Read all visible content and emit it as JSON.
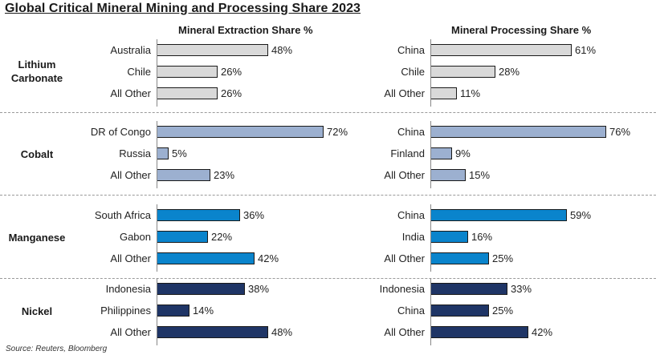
{
  "chart_data": {
    "type": "bar",
    "orientation": "horizontal",
    "title": "Global Critical Mineral Mining and Processing Share 2023",
    "source": "Source: Reuters, Bloomberg",
    "unit": "%",
    "xlim": [
      0,
      100
    ],
    "grid": false,
    "panels": [
      {
        "title": "Mineral Extraction Share %",
        "groups": [
          {
            "name": "Lithium Carbonate",
            "color": "#d9d9d9",
            "categories": [
              "Australia",
              "Chile",
              "All Other"
            ],
            "values": [
              48,
              26,
              26
            ],
            "labels": [
              "48%",
              "26%",
              "26%"
            ]
          },
          {
            "name": "Cobalt",
            "color": "#9cb0d0",
            "categories": [
              "DR of Congo",
              "Russia",
              "All Other"
            ],
            "values": [
              72,
              5,
              23
            ],
            "labels": [
              "72%",
              "5%",
              "23%"
            ]
          },
          {
            "name": "Manganese",
            "color": "#0a84cc",
            "categories": [
              "South Africa",
              "Gabon",
              "All Other"
            ],
            "values": [
              36,
              22,
              42
            ],
            "labels": [
              "36%",
              "22%",
              "42%"
            ]
          },
          {
            "name": "Nickel",
            "color": "#1f3566",
            "categories": [
              "Indonesia",
              "Philippines",
              "All Other"
            ],
            "values": [
              38,
              14,
              48
            ],
            "labels": [
              "38%",
              "14%",
              "48%"
            ]
          }
        ]
      },
      {
        "title": "Mineral Processing Share %",
        "groups": [
          {
            "name": "Lithium Carbonate",
            "color": "#d9d9d9",
            "categories": [
              "China",
              "Chile",
              "All Other"
            ],
            "values": [
              61,
              28,
              11
            ],
            "labels": [
              "61%",
              "28%",
              "11%"
            ]
          },
          {
            "name": "Cobalt",
            "color": "#9cb0d0",
            "categories": [
              "China",
              "Finland",
              "All Other"
            ],
            "values": [
              76,
              9,
              15
            ],
            "labels": [
              "76%",
              "9%",
              "15%"
            ]
          },
          {
            "name": "Manganese",
            "color": "#0a84cc",
            "categories": [
              "China",
              "India",
              "All Other"
            ],
            "values": [
              59,
              16,
              25
            ],
            "labels": [
              "59%",
              "16%",
              "25%"
            ]
          },
          {
            "name": "Nickel",
            "color": "#1f3566",
            "categories": [
              "Indonesia",
              "China",
              "All Other"
            ],
            "values": [
              33,
              25,
              42
            ],
            "labels": [
              "33%",
              "25%",
              "42%"
            ]
          }
        ]
      }
    ],
    "group_labels": [
      "Lithium\nCarbonate",
      "Cobalt",
      "Manganese",
      "Nickel"
    ]
  }
}
